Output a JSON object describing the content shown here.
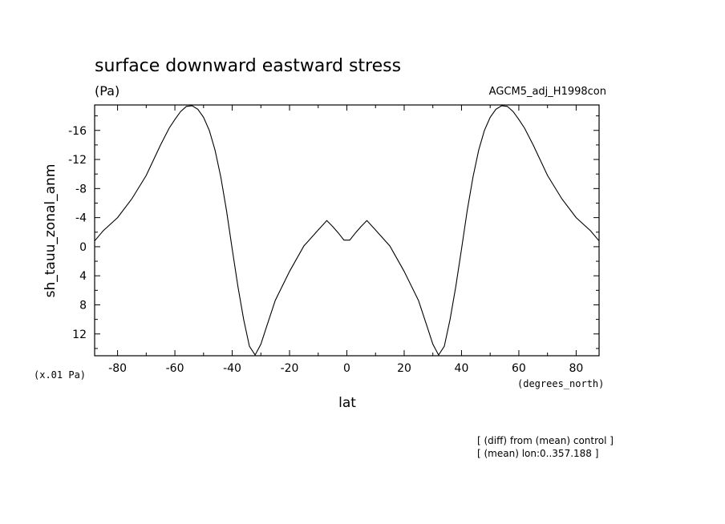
{
  "chart_data": {
    "type": "line",
    "title": "surface downward eastward stress",
    "units_label": "(Pa)",
    "run_label": "AGCM5_adj_H1998con",
    "ylabel": "sh_tauu_zonal_anm",
    "xlabel": "lat",
    "y_scale_label": "(x.01 Pa)",
    "x_units_label": "(degrees_north)",
    "notes": [
      "[ (diff) from (mean) control ]",
      "[ (mean) lon:0..357.188 ]"
    ],
    "xlim": [
      -88,
      88
    ],
    "ylim": [
      15,
      -19.5
    ],
    "y_inverted": true,
    "x_ticks": [
      -80,
      -60,
      -40,
      -20,
      0,
      20,
      40,
      60,
      80
    ],
    "x_tick_labels": [
      "-80",
      "-60",
      "-40",
      "-20",
      "0",
      "20",
      "40",
      "60",
      "80"
    ],
    "y_ticks": [
      -16,
      -12,
      -8,
      -4,
      0,
      4,
      8,
      12
    ],
    "y_tick_labels": [
      "-16",
      "-12",
      "-8",
      "-4",
      "0",
      "4",
      "8",
      "12"
    ],
    "grid": false,
    "series": [
      {
        "x": [
          -88,
          -85,
          -80,
          -75,
          -70,
          -65,
          -62,
          -60,
          -58,
          -56,
          -54,
          -52,
          -50,
          -48,
          -46,
          -44,
          -42,
          -40,
          -38,
          -36,
          -34,
          -32,
          -30,
          -28,
          -25,
          -20,
          -15,
          -10,
          -7,
          -5,
          -3,
          -1,
          1,
          3,
          5,
          7,
          10,
          15,
          20,
          25,
          28,
          30,
          32,
          34,
          36,
          38,
          40,
          42,
          44,
          46,
          48,
          50,
          52,
          54,
          56,
          58,
          60,
          62,
          65,
          70,
          75,
          80,
          85,
          88
        ],
        "y": [
          -0.8,
          -2.2,
          -4.0,
          -6.6,
          -9.8,
          -14.0,
          -16.3,
          -17.5,
          -18.6,
          -19.3,
          -19.4,
          -18.9,
          -17.8,
          -16.0,
          -13.3,
          -9.6,
          -5.0,
          0.3,
          5.5,
          10.0,
          13.7,
          14.9,
          13.4,
          11.0,
          7.4,
          3.4,
          -0.1,
          -2.3,
          -3.6,
          -2.8,
          -1.9,
          -0.9,
          -0.9,
          -1.9,
          -2.8,
          -3.6,
          -2.3,
          -0.1,
          3.4,
          7.4,
          11.0,
          13.4,
          14.9,
          13.7,
          10.0,
          5.5,
          0.3,
          -5.0,
          -9.6,
          -13.3,
          -16.0,
          -17.8,
          -18.9,
          -19.4,
          -19.3,
          -18.6,
          -17.5,
          -16.3,
          -14.0,
          -9.8,
          -6.6,
          -4.0,
          -2.2,
          -0.8
        ]
      }
    ]
  }
}
